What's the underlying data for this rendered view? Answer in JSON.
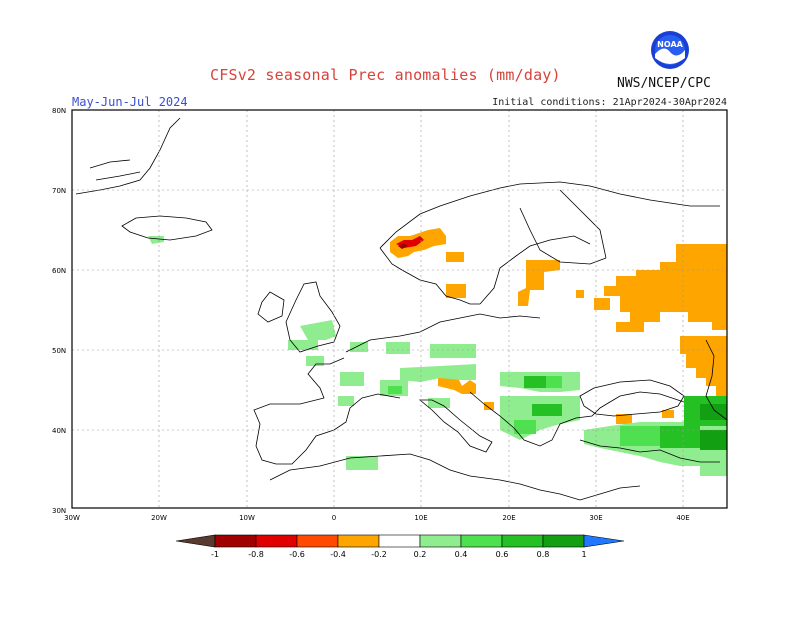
{
  "header": {
    "title": "CFSv2 seasonal Prec anomalies (mm/day)",
    "period": "May-Jun-Jul 2024",
    "initial_conditions": "Initial conditions: 21Apr2024-30Apr2024",
    "agency": "NWS/NCEP/CPC",
    "logo_text": "NOAA"
  },
  "map": {
    "lon_range": [
      -30,
      45
    ],
    "lat_range": [
      30,
      80
    ],
    "lat_labels": [
      "80N",
      "70N",
      "60N",
      "50N",
      "40N",
      "30N"
    ],
    "lon_labels": [
      "30W",
      "20W",
      "10W",
      "0",
      "10E",
      "20E",
      "30E",
      "40E"
    ]
  },
  "colorbar": {
    "labels": [
      "-1",
      "-0.8",
      "-0.6",
      "-0.4",
      "-0.2",
      "0.2",
      "0.4",
      "0.6",
      "0.8",
      "1"
    ],
    "colors": {
      "below_min": "#5a3a2e",
      "minus_1_to_0_8": "#a00000",
      "minus_0_8_to_0_6": "#e00000",
      "minus_0_6_to_0_4": "#ff4a00",
      "minus_0_4_to_0_2": "#ffa500",
      "neutral": "#ffffff",
      "plus_0_2_to_0_4": "#8fec8f",
      "plus_0_4_to_0_6": "#4fe04f",
      "plus_0_6_to_0_8": "#24c024",
      "plus_0_8_to_1": "#12a012",
      "above_max": "#1f78ff"
    }
  }
}
